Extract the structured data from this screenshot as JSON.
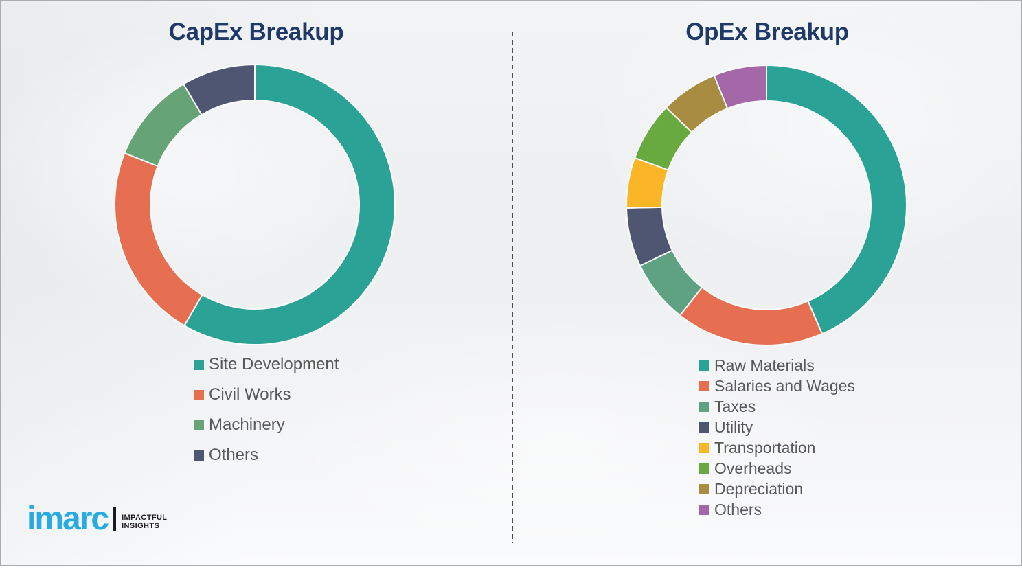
{
  "frame": {
    "border_color": "#a9adb0",
    "background": "#eef0f2",
    "divider": {
      "style": "dashed",
      "color": "#4f4f4f"
    }
  },
  "theme": {
    "title_color": "#1f3a68",
    "legend_text_color": "#595959",
    "segment_gap_color": "#fafafa"
  },
  "chart_data": [
    {
      "type": "pie",
      "subtype": "donut",
      "title": "CapEx Breakup",
      "categories": [
        "Site Development",
        "Civil Works",
        "Machinery",
        "Others"
      ],
      "values": [
        58.4,
        22.6,
        10.5,
        8.5
      ],
      "values_note": "percent, estimated from arc angles (no data labels shown)",
      "colors": [
        "#2aa295",
        "#e76f51",
        "#66a377",
        "#4e5671"
      ],
      "start_angle_deg": 0,
      "direction": "clockwise",
      "legend_position": "below-left",
      "data_labels": false
    },
    {
      "type": "pie",
      "subtype": "donut",
      "title": "OpEx Breakup",
      "categories": [
        "Raw Materials",
        "Salaries and Wages",
        "Taxes",
        "Utility",
        "Transportation",
        "Overheads",
        "Depreciation",
        "Others"
      ],
      "values": [
        43.5,
        17.1,
        7.3,
        6.8,
        5.8,
        6.8,
        6.6,
        6.1
      ],
      "values_note": "percent, estimated from arc angles (no data labels shown)",
      "colors": [
        "#2aa295",
        "#e76f51",
        "#5fa183",
        "#4e5671",
        "#fab627",
        "#69aa40",
        "#a78c41",
        "#a468a8"
      ],
      "start_angle_deg": 0,
      "direction": "clockwise",
      "legend_position": "below-left",
      "data_labels": false
    }
  ],
  "logo": {
    "brand": "imarc",
    "brand_color": "#29abe2",
    "tagline_line1": "IMPACTFUL",
    "tagline_line2": "INSIGHTS",
    "tagline_color": "#231f20"
  }
}
